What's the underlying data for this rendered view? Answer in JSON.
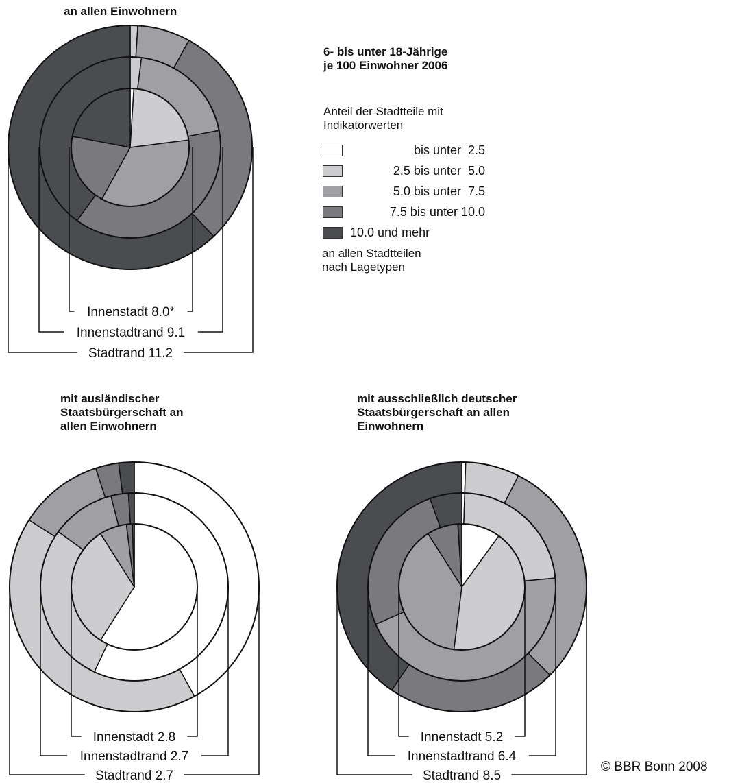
{
  "titles": {
    "chart1": "an allen Einwohnern",
    "main": "6- bis unter 18-Jährige\nje 100 Einwohner 2006",
    "chart2": "mit ausländischer\nStaatsbürgerschaft an\nallen Einwohnern",
    "chart3": "mit ausschließlich deutscher\nStaatsbürgerschaft an allen\nEinwohnern"
  },
  "legend": {
    "heading": "Anteil der Stadtteile mit\nIndikatorwerten",
    "items": [
      {
        "color": "#ffffff",
        "label": "bis unter  2.5"
      },
      {
        "color": "#cdcdcf",
        "label": "2.5 bis unter  5.0"
      },
      {
        "color": "#a0a0a4",
        "label": "5.0 bis unter  7.5"
      },
      {
        "color": "#7a7a7e",
        "label": "7.5 bis unter 10.0"
      },
      {
        "color": "#4a4c50",
        "label": "10.0 und mehr"
      }
    ],
    "footer": "an allen Stadtteilen\nnach Lagetypen"
  },
  "copyright": "© BBR Bonn 2008",
  "chart_data": [
    {
      "type": "pie",
      "title": "an allen Einwohnern",
      "rings": [
        {
          "name": "Innenstadt",
          "value": "8.0*",
          "shares": [
            1,
            22,
            35,
            20,
            22
          ]
        },
        {
          "name": "Innenstadtrand",
          "value": "9.1",
          "shares": [
            0,
            2,
            20,
            38,
            40
          ]
        },
        {
          "name": "Stadtrand",
          "value": "11.2",
          "shares": [
            0,
            1,
            7,
            30,
            62
          ]
        }
      ]
    },
    {
      "type": "pie",
      "title": "mit ausländischer Staatsbürgerschaft an allen Einwohnern",
      "rings": [
        {
          "name": "Innenstadt",
          "value": "2.8",
          "shares": [
            59,
            32,
            7,
            1.5,
            0.5
          ]
        },
        {
          "name": "Innenstadtrand",
          "value": "2.7",
          "shares": [
            57,
            28,
            11,
            3,
            1
          ]
        },
        {
          "name": "Stadtrand",
          "value": "2.7",
          "shares": [
            42,
            42,
            11,
            3,
            2
          ]
        }
      ]
    },
    {
      "type": "pie",
      "title": "mit ausschließlich deutscher Staatsbürgerschaft an allen Einwohnern",
      "rings": [
        {
          "name": "Innenstadt",
          "value": "5.2",
          "shares": [
            10,
            42,
            39,
            8,
            1
          ]
        },
        {
          "name": "Innenstadtrand",
          "value": "6.4",
          "shares": [
            0.5,
            23,
            45,
            26,
            5.5
          ]
        },
        {
          "name": "Stadtrand",
          "value": "8.5",
          "shares": [
            0.5,
            7,
            30,
            22,
            40.5
          ]
        }
      ]
    }
  ]
}
